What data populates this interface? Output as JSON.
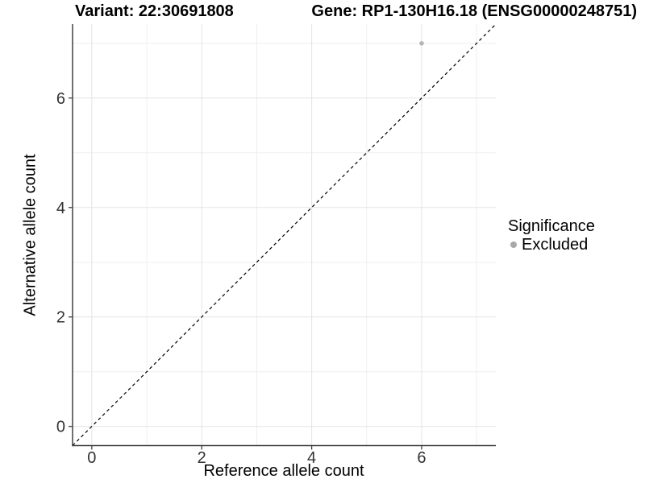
{
  "chart_data": {
    "type": "scatter",
    "title_left": "Variant: 22:30691808",
    "title_right": "Gene: RP1-130H16.18 (ENSG00000248751)",
    "xlabel": "Reference allele count",
    "ylabel": "Alternative allele count",
    "xlim": [
      -0.35,
      7.35
    ],
    "ylim": [
      -0.35,
      7.35
    ],
    "x_major_ticks": [
      0,
      2,
      4,
      6
    ],
    "y_major_ticks": [
      0,
      2,
      4,
      6
    ],
    "x_minor_gridlines": [
      1,
      3,
      5,
      7
    ],
    "y_minor_gridlines": [
      1,
      3,
      5,
      7
    ],
    "grid": "major+minor",
    "points": [
      {
        "x": 6,
        "y": 7,
        "significance": "Excluded"
      }
    ],
    "identity_line": {
      "slope": 1,
      "intercept": 0,
      "linetype": "dashed",
      "color": "#000000"
    },
    "legend": {
      "title": "Significance",
      "position": "right",
      "items": [
        {
          "label": "Excluded",
          "color": "#a8a8a8"
        }
      ]
    },
    "colors": {
      "point": "#b5b5b5",
      "axis_line": "#404040",
      "tick_label": "#333333",
      "grid_major": "#e4e4e4",
      "grid_minor": "#efefef",
      "background": "#ffffff"
    }
  }
}
